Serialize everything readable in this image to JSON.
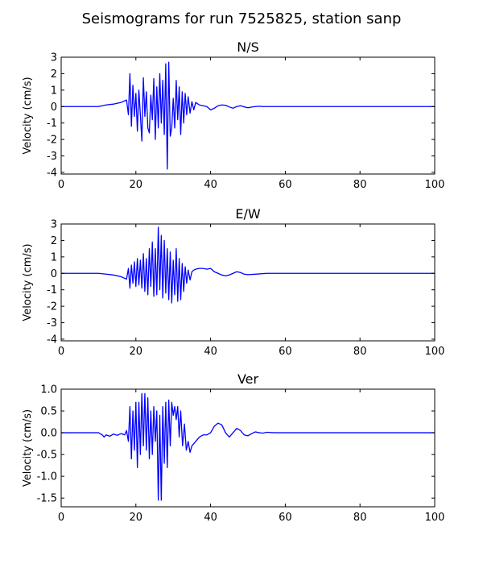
{
  "figure": {
    "title": "Seismograms for run 7525825, station sanp"
  },
  "chart_data": [
    {
      "type": "line",
      "title": "N/S",
      "xlabel": "",
      "ylabel": "Velocity (cm/s)",
      "xlim": [
        0,
        100
      ],
      "ylim": [
        -4.1,
        3
      ],
      "xticks": [
        0,
        20,
        40,
        60,
        80,
        100
      ],
      "yticks": [
        -4,
        -3,
        -2,
        -1,
        0,
        1,
        2,
        3
      ],
      "color": "#0000ff",
      "series": [
        {
          "x": [
            0,
            10,
            12,
            14,
            16,
            17.5,
            18,
            18.4,
            18.8,
            19.2,
            19.6,
            20,
            20.4,
            20.8,
            21.2,
            21.6,
            22,
            22.4,
            22.8,
            23.2,
            23.6,
            24,
            24.4,
            24.8,
            25.2,
            25.6,
            26,
            26.4,
            26.8,
            27.2,
            27.6,
            28,
            28.4,
            28.8,
            29.2,
            29.6,
            30,
            30.4,
            30.8,
            31.2,
            31.6,
            32,
            32.4,
            32.8,
            33.2,
            33.6,
            34,
            34.5,
            35,
            35.5,
            36,
            37,
            38,
            39,
            40,
            41,
            42,
            43,
            44,
            45,
            46,
            47,
            48,
            49,
            50,
            51,
            52,
            53,
            54,
            56,
            60,
            70,
            80,
            90,
            100
          ],
          "y": [
            0,
            0,
            0.1,
            0.15,
            0.25,
            0.4,
            -0.5,
            2.0,
            -1.2,
            1.3,
            -0.6,
            0.8,
            -1.5,
            1.0,
            -0.5,
            -2.1,
            1.75,
            -0.6,
            0.9,
            -1.3,
            -1.6,
            0.7,
            -0.8,
            1.7,
            -2.0,
            1.2,
            -1.3,
            2.0,
            -1.0,
            1.6,
            -1.7,
            2.6,
            -3.8,
            2.7,
            -1.8,
            -1.3,
            0.5,
            -1.3,
            1.6,
            -0.8,
            1.2,
            -1.7,
            0.9,
            -1.0,
            0.8,
            -0.5,
            0.6,
            -0.4,
            0.3,
            -0.2,
            0.25,
            0.1,
            0.05,
            0,
            -0.2,
            -0.1,
            0.05,
            0.1,
            0.08,
            -0.02,
            -0.1,
            0,
            0.05,
            -0.02,
            -0.07,
            -0.03,
            0,
            0.02,
            0,
            0,
            0,
            0,
            0,
            0,
            0
          ]
        }
      ]
    },
    {
      "type": "line",
      "title": "E/W",
      "xlabel": "",
      "ylabel": "Velocity (cm/s)",
      "xlim": [
        0,
        100
      ],
      "ylim": [
        -4.1,
        3
      ],
      "xticks": [
        0,
        20,
        40,
        60,
        80,
        100
      ],
      "yticks": [
        -4,
        -3,
        -2,
        -1,
        0,
        1,
        2,
        3
      ],
      "color": "#0000ff",
      "series": [
        {
          "x": [
            0,
            10,
            12,
            14,
            16,
            17.5,
            18,
            18.4,
            18.8,
            19.2,
            19.6,
            20,
            20.4,
            20.8,
            21.2,
            21.6,
            22,
            22.4,
            22.8,
            23.2,
            23.6,
            24,
            24.4,
            24.8,
            25.2,
            25.6,
            26,
            26.4,
            26.8,
            27.2,
            27.6,
            28,
            28.4,
            28.8,
            29.2,
            29.6,
            30,
            30.4,
            30.8,
            31.2,
            31.6,
            32,
            32.4,
            32.8,
            33.2,
            33.6,
            34,
            34.5,
            35,
            35.5,
            36,
            37,
            38,
            39,
            40,
            41,
            42,
            43,
            44,
            45,
            46,
            47,
            48,
            49,
            50,
            52,
            55,
            60,
            70,
            80,
            90,
            100
          ],
          "y": [
            0,
            0,
            -0.05,
            -0.1,
            -0.2,
            -0.35,
            0.3,
            -0.9,
            0.5,
            -0.6,
            0.7,
            -0.8,
            0.9,
            -0.7,
            0.8,
            -0.9,
            1.2,
            -1.1,
            0.9,
            -1.3,
            1.5,
            -0.8,
            1.9,
            -1.4,
            1.5,
            -1.3,
            2.8,
            -1.0,
            2.3,
            -1.5,
            2.0,
            -1.2,
            1.5,
            -1.6,
            1.3,
            -1.8,
            0.8,
            -1.3,
            1.5,
            -1.7,
            0.9,
            -1.6,
            0.6,
            -1.1,
            0.4,
            -0.6,
            0.2,
            -0.4,
            0.1,
            0.2,
            0.25,
            0.3,
            0.3,
            0.25,
            0.3,
            0.1,
            0,
            -0.1,
            -0.15,
            -0.1,
            0,
            0.1,
            0.05,
            -0.05,
            -0.08,
            -0.05,
            0,
            0,
            0,
            0,
            0,
            0
          ]
        }
      ]
    },
    {
      "type": "line",
      "title": "Ver",
      "xlabel": "",
      "ylabel": "Velocity (cm/s)",
      "xlim": [
        0,
        100
      ],
      "ylim": [
        -1.7,
        1.0
      ],
      "xticks": [
        0,
        20,
        40,
        60,
        80,
        100
      ],
      "yticks": [
        1.0,
        0.5,
        0.0,
        -0.5,
        -1.0,
        -1.5
      ],
      "ytickdecimals": 1,
      "color": "#0000ff",
      "series": [
        {
          "x": [
            0,
            10,
            11,
            11.5,
            12,
            13,
            14,
            15,
            16,
            17,
            17.5,
            18,
            18.4,
            18.8,
            19.2,
            19.6,
            20,
            20.4,
            20.8,
            21.2,
            21.6,
            22,
            22.4,
            22.8,
            23.2,
            23.6,
            24,
            24.4,
            24.8,
            25.2,
            25.6,
            26,
            26.4,
            26.8,
            27.2,
            27.6,
            28,
            28.4,
            28.8,
            29.2,
            29.6,
            30,
            30.4,
            30.8,
            31.2,
            31.6,
            32,
            32.5,
            33,
            33.5,
            34,
            34.5,
            35,
            36,
            37,
            38,
            39,
            40,
            41,
            42,
            43,
            44,
            45,
            46,
            47,
            48,
            49,
            50,
            51,
            52,
            53,
            54,
            55,
            57,
            60,
            70,
            80,
            90,
            100
          ],
          "y": [
            0,
            0,
            -0.05,
            -0.1,
            -0.05,
            -0.08,
            -0.03,
            -0.06,
            -0.02,
            -0.05,
            0.05,
            -0.2,
            0.6,
            -0.6,
            0.5,
            -0.4,
            0.7,
            -0.8,
            0.7,
            -0.5,
            0.9,
            -0.3,
            0.9,
            -0.4,
            0.8,
            -0.6,
            0.5,
            -0.5,
            0.6,
            -0.2,
            0.5,
            -1.55,
            0.4,
            -1.55,
            0.6,
            -0.7,
            0.7,
            -0.8,
            0.75,
            -0.3,
            0.7,
            0.4,
            0.6,
            0.3,
            0.6,
            -0.1,
            0.5,
            -0.3,
            0.2,
            -0.4,
            -0.2,
            -0.45,
            -0.3,
            -0.2,
            -0.1,
            -0.05,
            -0.05,
            0,
            0.15,
            0.22,
            0.18,
            0,
            -0.1,
            0,
            0.1,
            0.05,
            -0.05,
            -0.07,
            -0.02,
            0.02,
            0,
            -0.01,
            0.01,
            0,
            0,
            0,
            0,
            0,
            0
          ]
        }
      ]
    }
  ]
}
